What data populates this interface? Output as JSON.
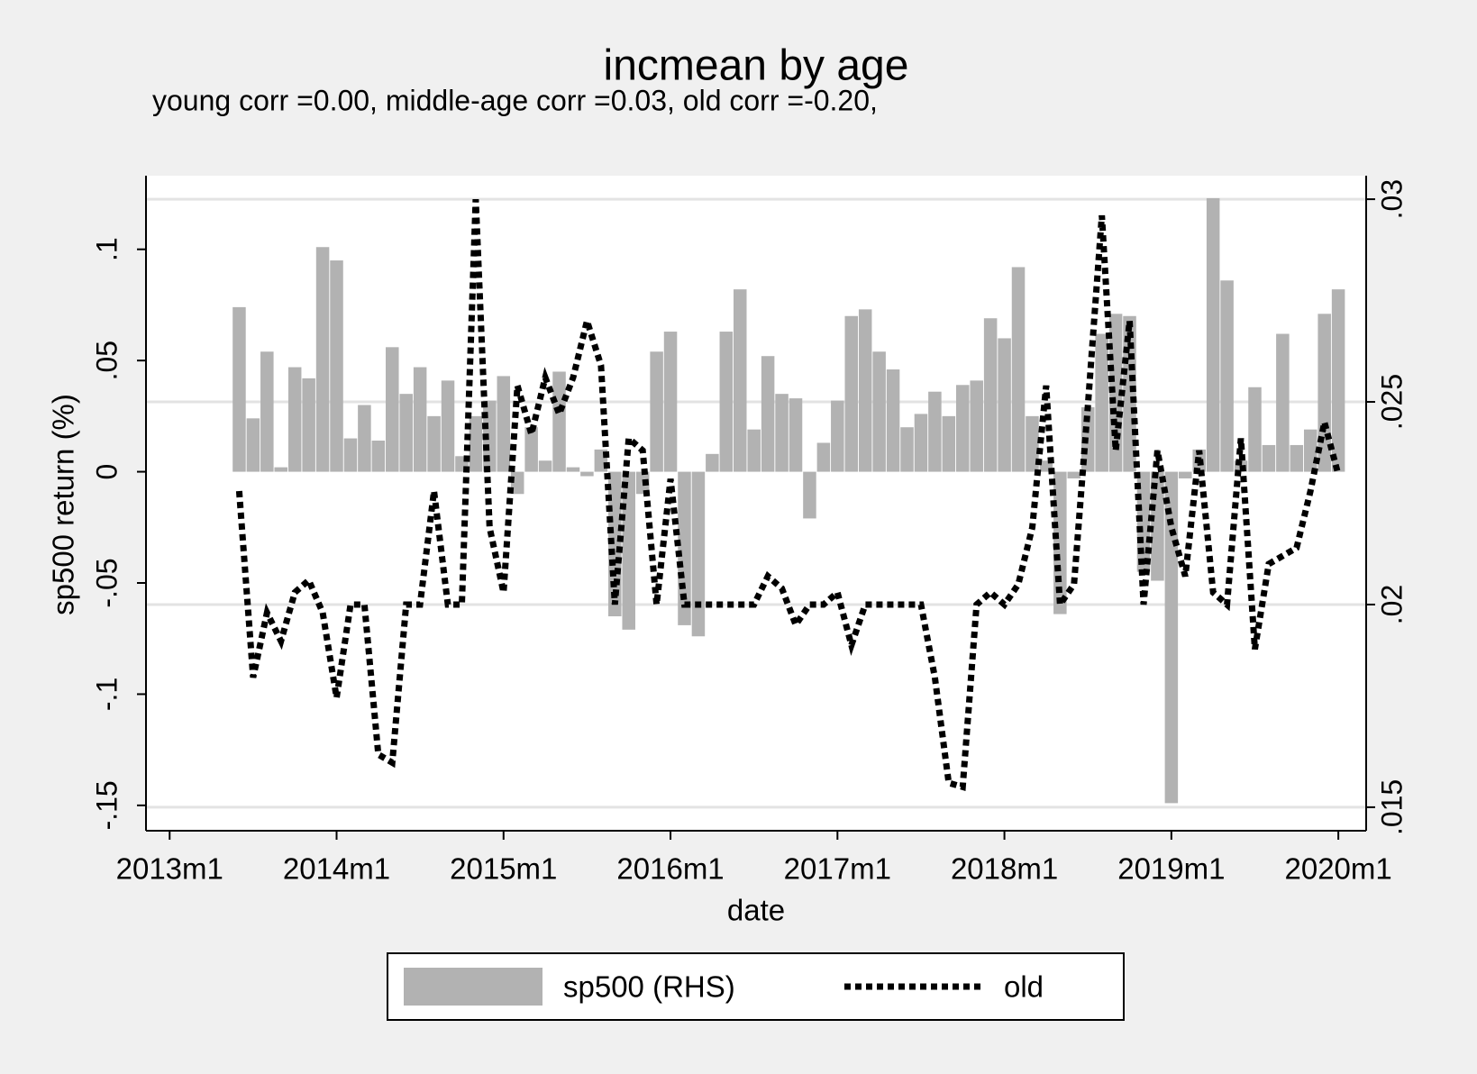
{
  "chart_data": {
    "type": "bar+line",
    "title": "incmean by age",
    "subtitle": "young corr =0.00, middle-age corr =0.03, old corr =-0.20,",
    "xlabel": "date",
    "ylabel": "sp500 return (%)",
    "x": [
      641,
      642,
      643,
      644,
      645,
      646,
      647,
      648,
      649,
      650,
      651,
      652,
      653,
      654,
      655,
      656,
      657,
      658,
      659,
      660,
      661,
      662,
      663,
      664,
      665,
      666,
      667,
      668,
      669,
      670,
      671,
      672,
      673,
      674,
      675,
      676,
      677,
      678,
      679,
      680,
      681,
      682,
      683,
      684,
      685,
      686,
      687,
      688,
      689,
      690,
      691,
      692,
      693,
      694,
      695,
      696,
      697,
      698,
      699,
      700,
      701,
      702,
      703,
      704,
      705,
      706,
      707,
      708,
      709,
      710,
      711,
      712,
      713,
      714,
      715,
      716,
      717,
      718,
      719,
      720
    ],
    "xlim": [
      634.3,
      722
    ],
    "xticks": [
      {
        "value": 636,
        "label": "2013m1"
      },
      {
        "value": 648,
        "label": "2014m1"
      },
      {
        "value": 660,
        "label": "2015m1"
      },
      {
        "value": 672,
        "label": "2016m1"
      },
      {
        "value": 684,
        "label": "2017m1"
      },
      {
        "value": 696,
        "label": "2018m1"
      },
      {
        "value": 708,
        "label": "2019m1"
      },
      {
        "value": 720,
        "label": "2020m1"
      }
    ],
    "ylim": [
      -0.1614,
      0.1331
    ],
    "yticks": [
      {
        "value": -0.15,
        "label": "-.15"
      },
      {
        "value": -0.1,
        "label": "-.1"
      },
      {
        "value": -0.05,
        "label": "-.05"
      },
      0,
      {
        "value": 0.05,
        "label": ".05"
      },
      {
        "value": 0.1,
        "label": ".1"
      }
    ],
    "y2lim": [
      0.01442,
      0.03058
    ],
    "y2ticks": [
      {
        "value": 0.015,
        "label": ".015"
      },
      {
        "value": 0.02,
        "label": ".02"
      },
      {
        "value": 0.025,
        "label": ".025"
      },
      {
        "value": 0.03,
        "label": ".03"
      }
    ],
    "grid": "y2",
    "legend": "bottom",
    "series": [
      {
        "name": "sp500 (RHS)",
        "type": "bar",
        "color": "#b2b2b2",
        "axis": "y",
        "values": [
          0.074,
          0.024,
          0.054,
          0.002,
          0.047,
          0.042,
          0.101,
          0.095,
          0.015,
          0.03,
          0.014,
          0.056,
          0.035,
          0.047,
          0.025,
          0.041,
          0.007,
          0.025,
          0.032,
          0.043,
          -0.01,
          0.02,
          0.005,
          0.045,
          0.002,
          -0.002,
          0.01,
          -0.065,
          -0.071,
          -0.01,
          0.054,
          0.063,
          -0.069,
          -0.074,
          0.008,
          0.063,
          0.082,
          0.019,
          0.052,
          0.035,
          0.033,
          -0.021,
          0.013,
          0.032,
          0.07,
          0.073,
          0.054,
          0.046,
          0.02,
          0.026,
          0.036,
          0.025,
          0.039,
          0.041,
          0.069,
          0.06,
          0.092,
          0.025,
          0.005,
          -0.064,
          -0.003,
          0.029,
          0.062,
          0.071,
          0.07,
          -0.045,
          -0.049,
          -0.149,
          -0.003,
          0.01,
          0.123,
          0.086,
          0.005,
          0.038,
          0.012,
          0.062,
          0.012,
          0.019,
          0.071,
          0.082
        ]
      },
      {
        "name": "old",
        "type": "line",
        "color": "#000000",
        "axis": "y2",
        "values": [
          0.0228,
          0.0182,
          0.0198,
          0.0191,
          0.0203,
          0.0206,
          0.0198,
          0.0177,
          0.02,
          0.02,
          0.0163,
          0.0161,
          0.02,
          0.02,
          0.0228,
          0.02,
          0.02,
          0.03,
          0.0219,
          0.0203,
          0.0254,
          0.0242,
          0.0256,
          0.0247,
          0.0256,
          0.027,
          0.0259,
          0.02,
          0.0241,
          0.0238,
          0.02,
          0.0231,
          0.02,
          0.02,
          0.02,
          0.02,
          0.02,
          0.02,
          0.0207,
          0.0204,
          0.0195,
          0.02,
          0.02,
          0.0203,
          0.019,
          0.02,
          0.02,
          0.02,
          0.02,
          0.02,
          0.0182,
          0.0156,
          0.0155,
          0.02,
          0.0203,
          0.02,
          0.0205,
          0.0219,
          0.0254,
          0.02,
          0.0205,
          0.0249,
          0.0296,
          0.0238,
          0.027,
          0.02,
          0.0238,
          0.0219,
          0.0207,
          0.0238,
          0.0203,
          0.02,
          0.0241,
          0.0189,
          0.021,
          0.0212,
          0.0214,
          0.0228,
          0.0245,
          0.0232
        ]
      }
    ]
  }
}
